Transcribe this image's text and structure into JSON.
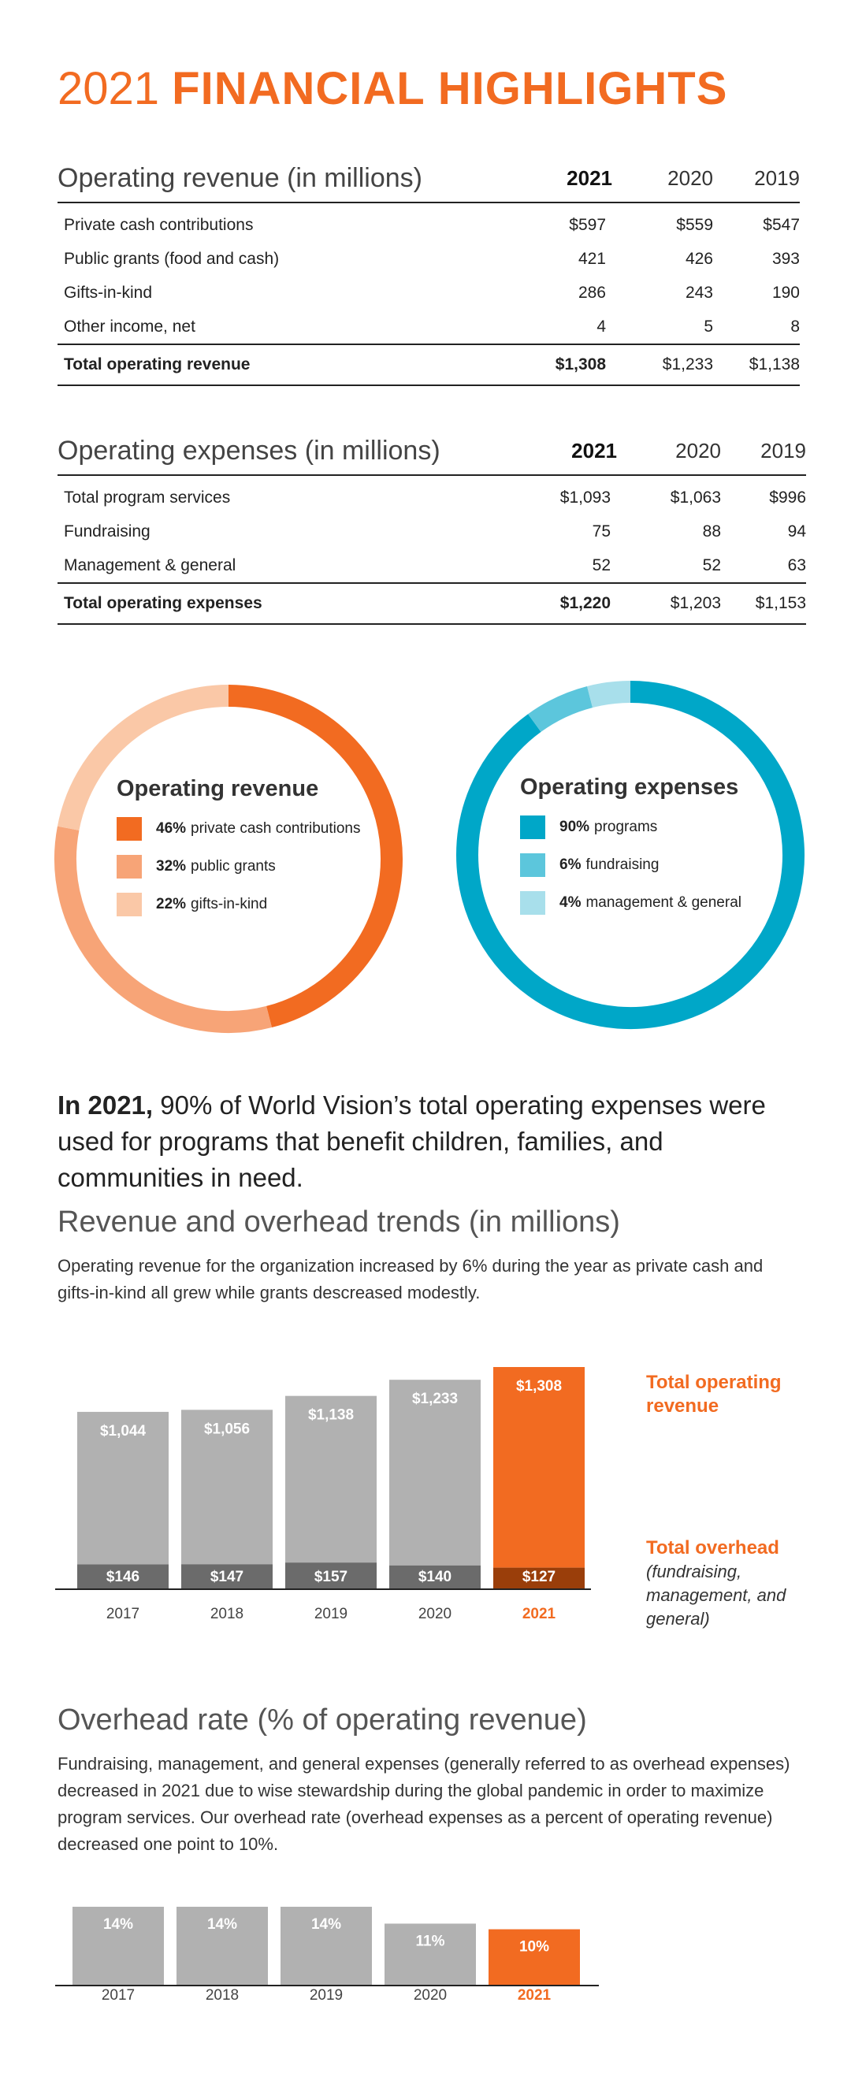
{
  "page": {
    "title_year": "2021",
    "title_text": "FINANCIAL HIGHLIGHTS"
  },
  "revenue_table": {
    "caption": "Operating revenue (in millions)",
    "years": [
      "2021",
      "2020",
      "2019"
    ],
    "rows": [
      {
        "label": "Private cash contributions",
        "values": [
          "$597",
          "$559",
          "$547"
        ]
      },
      {
        "label": "Public grants (food and cash)",
        "values": [
          "421",
          "426",
          "393"
        ]
      },
      {
        "label": "Gifts-in-kind",
        "values": [
          "286",
          "243",
          "190"
        ]
      },
      {
        "label": "Other income, net",
        "values": [
          "4",
          "5",
          "8"
        ]
      }
    ],
    "total": {
      "label": "Total operating revenue",
      "values": [
        "$1,308",
        "$1,233",
        "$1,138"
      ]
    }
  },
  "expense_table": {
    "caption": "Operating expenses (in millions)",
    "years": [
      "2021",
      "2020",
      "2019"
    ],
    "rows": [
      {
        "label": "Total program services",
        "values": [
          "$1,093",
          "$1,063",
          "$996"
        ]
      },
      {
        "label": "Fundraising",
        "values": [
          "75",
          "88",
          "94"
        ]
      },
      {
        "label": "Management & general",
        "values": [
          "52",
          "52",
          "63"
        ]
      }
    ],
    "total": {
      "label": "Total operating expenses",
      "values": [
        "$1,220",
        "$1,203",
        "$1,153"
      ]
    }
  },
  "statement": {
    "lead": "In 2021,",
    "text": "90% of World Vision’s total operating expenses were used for programs that benefit children, families, and communities in need."
  },
  "trends": {
    "title": "Revenue and overhead trends (in millions)",
    "description": "Operating revenue for the organization increased by 6% during the year as private cash and gifts-in-kind all grew while grants descreased modestly.",
    "revenue_note": "Total operating revenue",
    "overhead_note_title": "Total overhead",
    "overhead_note_sub": "(fundraising, management, and general)"
  },
  "overhead": {
    "title": "Overhead rate (% of operating revenue)",
    "description": "Fundraising, management, and general expenses (generally referred to as overhead expenses) decreased in 2021 due to wise stewardship during the global pandemic in order to maximize program services. Our overhead rate (overhead expenses as a percent of operating revenue) decreased one point to 10%."
  },
  "colors": {
    "orange": "#f26b21",
    "orange_mid": "#f7a477",
    "orange_light": "#fac8a7",
    "teal": "#00a7c8",
    "teal_mid": "#5cc6dc",
    "teal_light": "#a8dfeb",
    "gray": "#b1b1b1",
    "gray_dark": "#6b6b6b",
    "brown": "#9a3e0a"
  },
  "chart_data": [
    {
      "type": "pie",
      "title": "Operating revenue",
      "series": [
        {
          "name": "private cash contributions",
          "value": 46,
          "value_label": "46%",
          "color": "#f26b21"
        },
        {
          "name": "public grants",
          "value": 32,
          "value_label": "32%",
          "color": "#f7a477"
        },
        {
          "name": "gifts-in-kind",
          "value": 22,
          "value_label": "22%",
          "color": "#fac8a7"
        }
      ]
    },
    {
      "type": "pie",
      "title": "Operating expenses",
      "series": [
        {
          "name": "programs",
          "value": 90,
          "value_label": "90%",
          "color": "#00a7c8"
        },
        {
          "name": "fundraising",
          "value": 6,
          "value_label": "6%",
          "color": "#5cc6dc"
        },
        {
          "name": "management & general",
          "value": 4,
          "value_label": "4%",
          "color": "#a8dfeb"
        }
      ]
    },
    {
      "type": "bar",
      "title": "Revenue and overhead trends (in millions)",
      "categories": [
        "2017",
        "2018",
        "2019",
        "2020",
        "2021"
      ],
      "series": [
        {
          "name": "Total operating revenue",
          "values": [
            1044,
            1056,
            1138,
            1233,
            1308
          ],
          "labels": [
            "$1,044",
            "$1,056",
            "$1,138",
            "$1,233",
            "$1,308"
          ]
        },
        {
          "name": "Total overhead",
          "values": [
            146,
            147,
            157,
            140,
            127
          ],
          "labels": [
            "$146",
            "$147",
            "$157",
            "$140",
            "$127"
          ]
        }
      ],
      "highlight": "2021",
      "ylim": [
        0,
        1308
      ]
    },
    {
      "type": "bar",
      "title": "Overhead rate (% of operating revenue)",
      "categories": [
        "2017",
        "2018",
        "2019",
        "2020",
        "2021"
      ],
      "values": [
        14,
        14,
        14,
        11,
        10
      ],
      "labels": [
        "14%",
        "14%",
        "14%",
        "11%",
        "10%"
      ],
      "highlight": "2021",
      "ylim": [
        0,
        14
      ]
    }
  ]
}
